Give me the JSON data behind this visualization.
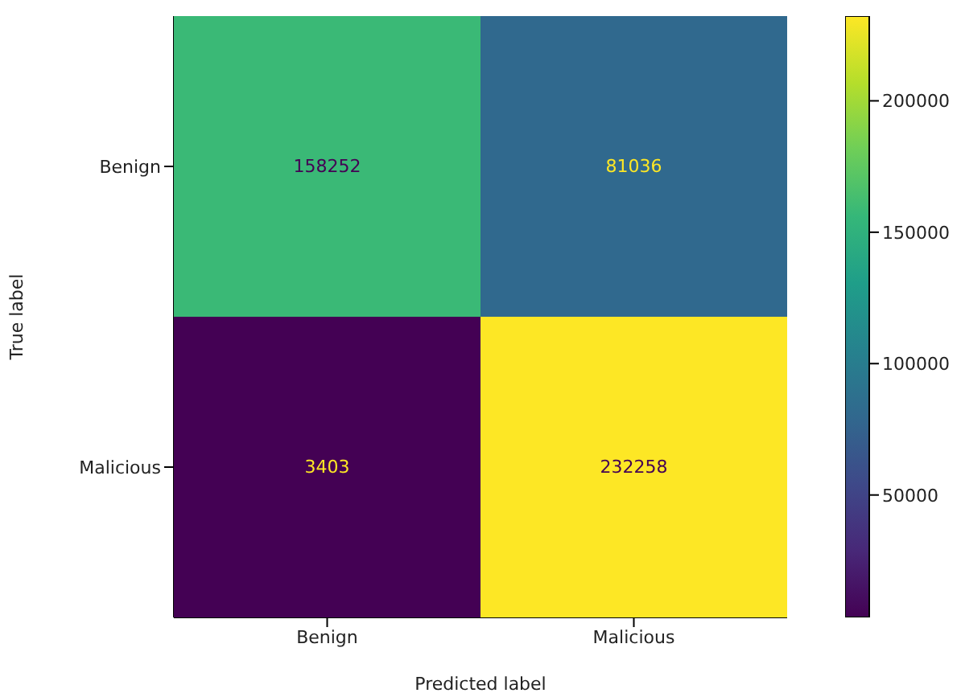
{
  "chart_data": {
    "type": "heatmap",
    "xlabel": "Predicted label",
    "ylabel": "True label",
    "categories": [
      "Benign",
      "Malicious"
    ],
    "y_categories": [
      "Benign",
      "Malicious"
    ],
    "cells": [
      [
        158252,
        81036
      ],
      [
        3403,
        232258
      ]
    ],
    "data_labels": true,
    "clim": [
      3403,
      232258
    ],
    "cticks": [
      50000,
      100000,
      150000,
      200000
    ]
  }
}
